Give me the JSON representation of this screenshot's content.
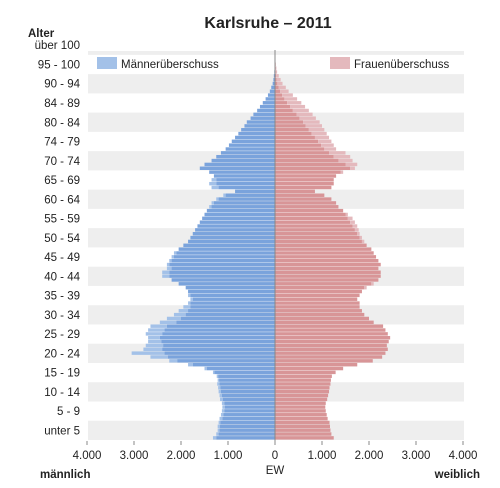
{
  "chart_data": {
    "type": "bar",
    "subtype": "population-pyramid",
    "title": "Karlsruhe – 2011",
    "y_axis_title": "Alter",
    "x_axis_title": "EW",
    "left_label": "männlich",
    "right_label": "weiblich",
    "x_ticks": [
      "4.000",
      "3.000",
      "2.000",
      "1.000",
      "0",
      "1.000",
      "2.000",
      "3.000",
      "4.000"
    ],
    "xlim": [
      -4000,
      4000
    ],
    "age_group_labels": [
      "unter 5",
      "5 - 9",
      "10 - 14",
      "15 - 19",
      "20 - 24",
      "25 - 29",
      "30 - 34",
      "35 - 39",
      "40 - 44",
      "45 - 49",
      "50 - 54",
      "55 - 59",
      "60 - 64",
      "65 - 69",
      "70 - 74",
      "74 - 79",
      "80 - 84",
      "84 - 89",
      "90 - 94",
      "95 - 100",
      "über 100"
    ],
    "legend": [
      {
        "label": "Männerüberschuss",
        "color": "#a3c1e8",
        "position": "top-left"
      },
      {
        "label": "Frauenüberschuss",
        "color": "#e4b9bd",
        "position": "top-right"
      }
    ],
    "colors": {
      "male": "#7aa3dc",
      "female": "#d89597",
      "male_surplus": "#a3c1e8",
      "female_surplus": "#e4b9bd",
      "band": "#eeeeee"
    },
    "ages": [
      0,
      1,
      2,
      3,
      4,
      5,
      6,
      7,
      8,
      9,
      10,
      11,
      12,
      13,
      14,
      15,
      16,
      17,
      18,
      19,
      20,
      21,
      22,
      23,
      24,
      25,
      26,
      27,
      28,
      29,
      30,
      31,
      32,
      33,
      34,
      35,
      36,
      37,
      38,
      39,
      40,
      41,
      42,
      43,
      44,
      45,
      46,
      47,
      48,
      49,
      50,
      51,
      52,
      53,
      54,
      55,
      56,
      57,
      58,
      59,
      60,
      61,
      62,
      63,
      64,
      65,
      66,
      67,
      68,
      69,
      70,
      71,
      72,
      73,
      74,
      75,
      76,
      77,
      78,
      79,
      80,
      81,
      82,
      83,
      84,
      85,
      86,
      87,
      88,
      89,
      90,
      91,
      92,
      93,
      94,
      95,
      96,
      97,
      98,
      99,
      100
    ],
    "male": [
      1320,
      1250,
      1220,
      1220,
      1200,
      1180,
      1150,
      1130,
      1120,
      1130,
      1170,
      1180,
      1200,
      1210,
      1230,
      1220,
      1240,
      1320,
      1500,
      1850,
      2250,
      2650,
      3050,
      2800,
      2750,
      2700,
      2700,
      2750,
      2700,
      2650,
      2450,
      2300,
      2150,
      2050,
      1950,
      1850,
      1800,
      1850,
      1850,
      1900,
      2050,
      2200,
      2400,
      2400,
      2300,
      2300,
      2250,
      2200,
      2150,
      2050,
      1950,
      1850,
      1800,
      1750,
      1700,
      1650,
      1600,
      1550,
      1500,
      1450,
      1400,
      1350,
      1250,
      1100,
      850,
      1350,
      1400,
      1350,
      1300,
      1400,
      1600,
      1500,
      1350,
      1250,
      1150,
      1050,
      980,
      920,
      850,
      780,
      720,
      650,
      600,
      520,
      460,
      380,
      320,
      260,
      200,
      150,
      110,
      80,
      50,
      35,
      25,
      15,
      10,
      6,
      4,
      2,
      1
    ],
    "female": [
      1250,
      1200,
      1180,
      1170,
      1160,
      1120,
      1100,
      1080,
      1070,
      1080,
      1110,
      1130,
      1150,
      1160,
      1180,
      1190,
      1210,
      1290,
      1450,
      1750,
      2080,
      2280,
      2350,
      2400,
      2380,
      2420,
      2450,
      2400,
      2350,
      2300,
      2100,
      2000,
      1900,
      1850,
      1800,
      1800,
      1750,
      1800,
      1850,
      1950,
      2100,
      2200,
      2250,
      2250,
      2200,
      2250,
      2200,
      2150,
      2100,
      2050,
      1950,
      1900,
      1850,
      1800,
      1780,
      1750,
      1700,
      1650,
      1550,
      1450,
      1350,
      1300,
      1200,
      1050,
      850,
      1200,
      1250,
      1250,
      1300,
      1450,
      1700,
      1750,
      1650,
      1600,
      1500,
      1300,
      1250,
      1200,
      1150,
      1100,
      1050,
      1000,
      950,
      870,
      800,
      720,
      640,
      560,
      470,
      380,
      290,
      230,
      160,
      120,
      80,
      45,
      30,
      18,
      10,
      5,
      2
    ]
  }
}
